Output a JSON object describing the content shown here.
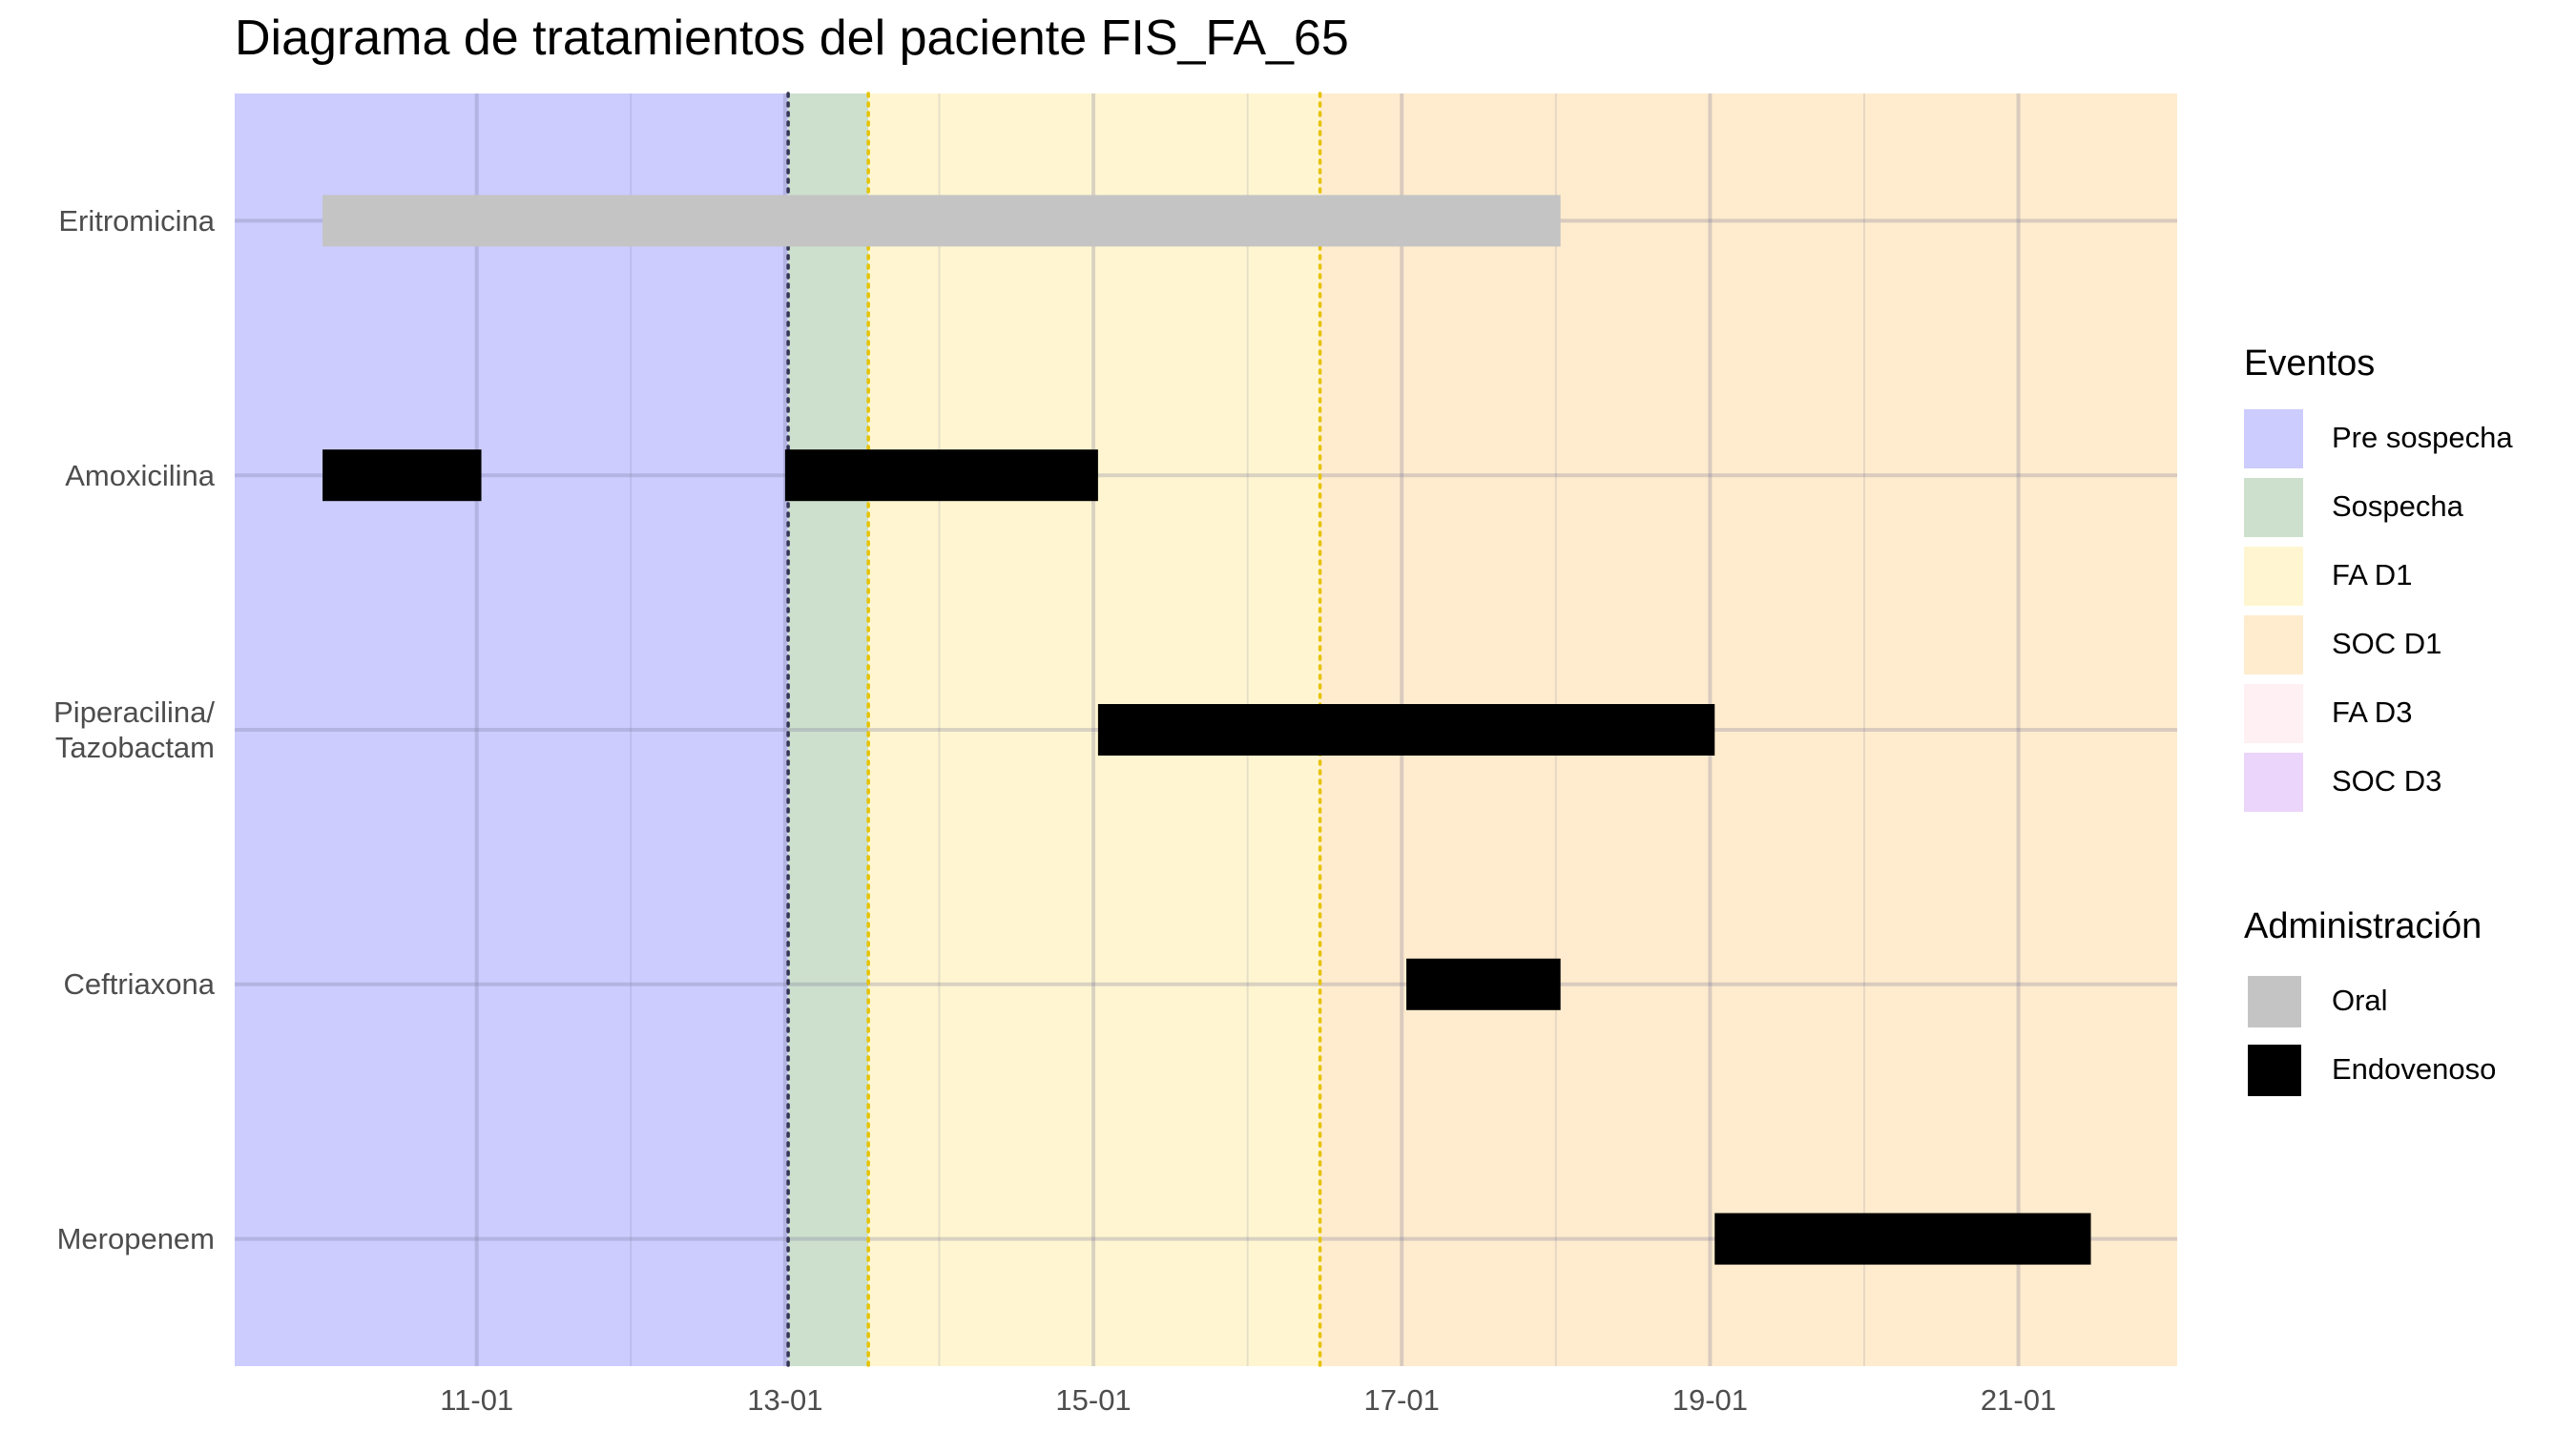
{
  "chart_data": {
    "type": "gantt",
    "title": "Diagrama de tratamientos del paciente FIS_FA_65",
    "xlabel": "",
    "ylabel": "",
    "x_tick_labels": [
      "11-01",
      "13-01",
      "15-01",
      "17-01",
      "19-01",
      "21-01"
    ],
    "x_ticks": [
      11,
      13,
      15,
      17,
      19,
      21
    ],
    "x_minor_ticks": [
      12,
      14,
      16,
      18,
      20
    ],
    "x_range": [
      9.43,
      22.03
    ],
    "categories": [
      "Eritromicina",
      "Amoxicilina",
      "Piperacilina/\nTazobactam",
      "Ceftriaxona",
      "Meropenem"
    ],
    "phases": [
      {
        "name": "Pre sospecha",
        "start": 9.43,
        "end": 13.02,
        "color": "#ccccff"
      },
      {
        "name": "Sospecha",
        "start": 13.02,
        "end": 13.54,
        "color": "#cde0cd"
      },
      {
        "name": "FA D1",
        "start": 13.54,
        "end": 16.47,
        "color": "#fff6d1"
      },
      {
        "name": "SOC D1",
        "start": 16.47,
        "end": 22.03,
        "color": "#ffecce"
      }
    ],
    "event_lines": [
      {
        "x": 13.02,
        "color": "#333355",
        "style": "dotted"
      },
      {
        "x": 13.54,
        "color": "#e6c200",
        "style": "dotted"
      },
      {
        "x": 16.47,
        "color": "#e6c200",
        "style": "dotted"
      }
    ],
    "treatments": [
      {
        "drug": "Eritromicina",
        "start": 10.0,
        "end": 18.03,
        "route": "Oral"
      },
      {
        "drug": "Amoxicilina",
        "start": 10.0,
        "end": 11.03,
        "route": "Endovenoso"
      },
      {
        "drug": "Amoxicilina",
        "start": 13.0,
        "end": 15.03,
        "route": "Endovenoso"
      },
      {
        "drug": "Piperacilina/\nTazobactam",
        "start": 15.03,
        "end": 19.03,
        "route": "Endovenoso"
      },
      {
        "drug": "Ceftriaxona",
        "start": 17.03,
        "end": 18.03,
        "route": "Endovenoso"
      },
      {
        "drug": "Meropenem",
        "start": 19.03,
        "end": 21.47,
        "route": "Endovenoso"
      }
    ],
    "legend": {
      "placement": "right",
      "groups": [
        {
          "title": "Eventos",
          "items": [
            {
              "label": "Pre sospecha",
              "color": "#ccccff"
            },
            {
              "label": "Sospecha",
              "color": "#cde0cd"
            },
            {
              "label": "FA D1",
              "color": "#fff6d1"
            },
            {
              "label": "SOC D1",
              "color": "#ffecce"
            },
            {
              "label": "FA D3",
              "color": "#fff0f3"
            },
            {
              "label": "SOC D3",
              "color": "#ecd5fb"
            }
          ]
        },
        {
          "title": "Administración",
          "items": [
            {
              "label": "Oral",
              "color": "#c4c4c4"
            },
            {
              "label": "Endovenoso",
              "color": "#000000"
            }
          ]
        }
      ]
    },
    "route_colors": {
      "Oral": "#c4c4c4",
      "Endovenoso": "#000000"
    },
    "grid": true
  }
}
